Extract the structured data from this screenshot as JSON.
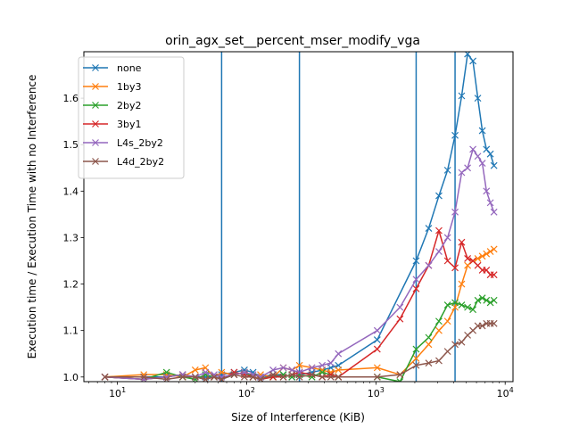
{
  "chart_data": {
    "type": "line",
    "title": "orin_agx_set__percent_mser_modify_vga",
    "xlabel": "Size of Interference (KiB)",
    "ylabel": "Execution time / Execution Time with no Interference",
    "x_scale": "log",
    "xlim": [
      5.5,
      11500
    ],
    "ylim": [
      0.99,
      1.7
    ],
    "x_ticks": [
      {
        "value": 10,
        "base": "10",
        "exp": "1"
      },
      {
        "value": 100,
        "base": "10",
        "exp": "2"
      },
      {
        "value": 1000,
        "base": "10",
        "exp": "3"
      },
      {
        "value": 10000,
        "base": "10",
        "exp": "4"
      }
    ],
    "y_ticks": [
      1.0,
      1.1,
      1.2,
      1.3,
      1.4,
      1.5,
      1.6
    ],
    "y_tick_labels": [
      "1.0",
      "1.1",
      "1.2",
      "1.3",
      "1.4",
      "1.5",
      "1.6"
    ],
    "vertical_lines": [
      64,
      256,
      2048,
      4096
    ],
    "vertical_line_color": "#1f77b4",
    "legend_position": "upper-left",
    "grid": false,
    "marker": "x",
    "series": [
      {
        "name": "none",
        "color": "#1f77b4",
        "x": [
          8,
          16,
          24,
          32,
          40,
          48,
          56,
          64,
          80,
          96,
          112,
          128,
          160,
          192,
          224,
          256,
          320,
          384,
          448,
          512,
          1024,
          2048,
          2560,
          3072,
          3584,
          4096,
          4608,
          5120,
          5632,
          6144,
          6656,
          7168,
          7680,
          8192
        ],
        "y": [
          1.0,
          1.0,
          1.0,
          1.005,
          1.0,
          1.0,
          1.0,
          1.005,
          1.01,
          1.015,
          1.01,
          1.0,
          1.005,
          1.005,
          1.0,
          1.005,
          1.01,
          1.015,
          1.02,
          1.025,
          1.08,
          1.25,
          1.32,
          1.39,
          1.445,
          1.52,
          1.605,
          1.695,
          1.68,
          1.6,
          1.53,
          1.49,
          1.48,
          1.455
        ]
      },
      {
        "name": "1by3",
        "color": "#ff7f0e",
        "x": [
          8,
          16,
          24,
          32,
          40,
          48,
          56,
          64,
          80,
          96,
          112,
          128,
          160,
          192,
          224,
          256,
          320,
          384,
          448,
          512,
          1024,
          1536,
          2048,
          2560,
          3072,
          3584,
          4096,
          4608,
          5120,
          5632,
          6144,
          6656,
          7168,
          7680,
          8192
        ],
        "y": [
          1.0,
          1.005,
          1.005,
          1.0,
          1.015,
          1.02,
          1.0,
          1.01,
          1.005,
          1.01,
          1.0,
          1.005,
          1.0,
          1.02,
          1.015,
          1.025,
          1.02,
          1.015,
          1.01,
          1.015,
          1.02,
          1.005,
          1.04,
          1.07,
          1.1,
          1.12,
          1.15,
          1.2,
          1.24,
          1.25,
          1.255,
          1.26,
          1.265,
          1.27,
          1.275
        ]
      },
      {
        "name": "2by2",
        "color": "#2ca02c",
        "x": [
          8,
          16,
          24,
          32,
          40,
          48,
          56,
          64,
          80,
          96,
          112,
          128,
          160,
          192,
          224,
          256,
          320,
          384,
          448,
          512,
          1024,
          1536,
          2048,
          2560,
          3072,
          3584,
          4096,
          4608,
          5120,
          5632,
          6144,
          6656,
          7168,
          7680,
          8192
        ],
        "y": [
          1.0,
          0.995,
          1.01,
          1.0,
          0.995,
          1.005,
          1.0,
          0.995,
          1.005,
          1.01,
          1.0,
          0.995,
          1.0,
          1.005,
          1.0,
          1.005,
          1.0,
          1.01,
          1.005,
          1.0,
          1.0,
          0.99,
          1.06,
          1.085,
          1.12,
          1.155,
          1.16,
          1.155,
          1.15,
          1.145,
          1.165,
          1.17,
          1.165,
          1.16,
          1.165
        ]
      },
      {
        "name": "3by1",
        "color": "#d62728",
        "x": [
          8,
          16,
          24,
          32,
          40,
          48,
          56,
          64,
          80,
          96,
          112,
          128,
          160,
          192,
          224,
          256,
          320,
          384,
          448,
          512,
          1024,
          1536,
          2048,
          2560,
          3072,
          3584,
          4096,
          4608,
          5120,
          5632,
          6144,
          6656,
          7168,
          7680,
          8192
        ],
        "y": [
          1.0,
          0.995,
          1.0,
          1.005,
          1.0,
          0.995,
          1.0,
          0.995,
          1.01,
          1.005,
          1.0,
          0.995,
          1.0,
          1.0,
          1.005,
          1.01,
          1.005,
          1.0,
          1.005,
          1.0,
          1.06,
          1.125,
          1.19,
          1.24,
          1.315,
          1.25,
          1.235,
          1.29,
          1.255,
          1.25,
          1.24,
          1.23,
          1.23,
          1.22,
          1.22
        ]
      },
      {
        "name": "L4s_2by2",
        "color": "#9467bd",
        "x": [
          8,
          16,
          24,
          32,
          40,
          48,
          56,
          64,
          80,
          96,
          112,
          128,
          160,
          192,
          224,
          256,
          320,
          384,
          448,
          512,
          1024,
          1536,
          2048,
          2560,
          3072,
          3584,
          4096,
          4608,
          5120,
          5632,
          6144,
          6656,
          7168,
          7680,
          8192
        ],
        "y": [
          1.0,
          0.995,
          1.0,
          1.005,
          1.0,
          1.01,
          1.005,
          1.0,
          1.005,
          1.01,
          1.005,
          1.0,
          1.015,
          1.02,
          1.015,
          1.01,
          1.02,
          1.025,
          1.03,
          1.05,
          1.1,
          1.15,
          1.21,
          1.24,
          1.27,
          1.3,
          1.355,
          1.44,
          1.45,
          1.49,
          1.475,
          1.46,
          1.4,
          1.375,
          1.355
        ]
      },
      {
        "name": "L4d_2by2",
        "color": "#8c564b",
        "x": [
          8,
          16,
          24,
          32,
          40,
          48,
          56,
          64,
          80,
          96,
          112,
          128,
          160,
          192,
          224,
          256,
          320,
          384,
          448,
          512,
          1024,
          1536,
          2048,
          2560,
          3072,
          3584,
          4096,
          4608,
          5120,
          5632,
          6144,
          6656,
          7168,
          7680,
          8192
        ],
        "y": [
          1.0,
          1.0,
          0.995,
          1.0,
          1.0,
          0.995,
          1.0,
          0.995,
          1.005,
          1.0,
          1.0,
          0.995,
          1.005,
          1.0,
          1.005,
          1.0,
          1.005,
          1.0,
          1.0,
          1.0,
          1.0,
          1.005,
          1.025,
          1.03,
          1.035,
          1.055,
          1.07,
          1.075,
          1.09,
          1.1,
          1.11,
          1.11,
          1.115,
          1.115,
          1.115
        ]
      }
    ]
  }
}
